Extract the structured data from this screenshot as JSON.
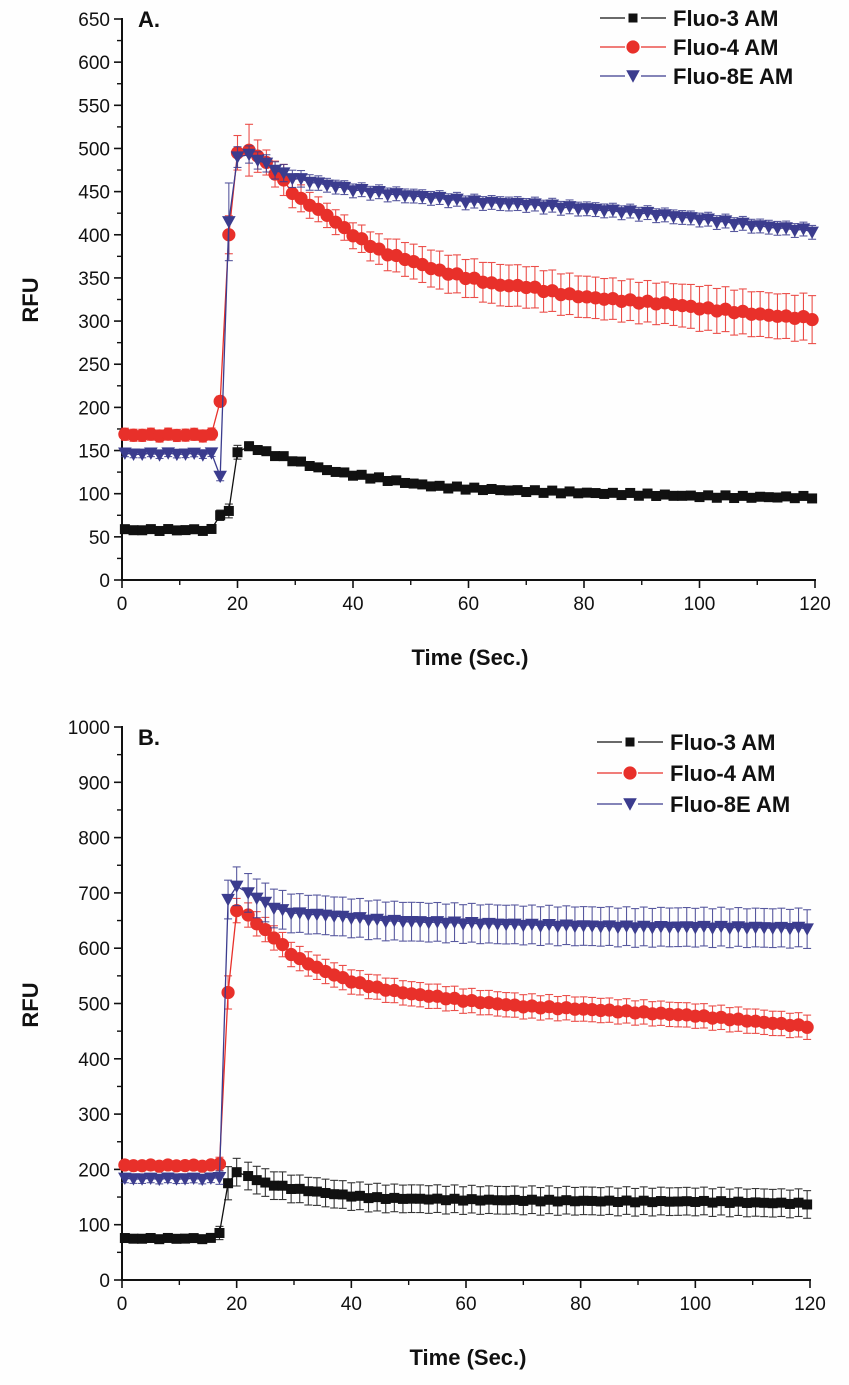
{
  "chart_data": [
    {
      "type": "line",
      "panel_label": "A.",
      "xlabel": "Time (Sec.)",
      "ylabel": "RFU",
      "xlim": [
        0,
        120
      ],
      "ylim": [
        0,
        650
      ],
      "xticks": [
        0,
        20,
        40,
        60,
        80,
        100,
        120
      ],
      "yticks": [
        0,
        50,
        100,
        150,
        200,
        250,
        300,
        350,
        400,
        450,
        500,
        550,
        600,
        650
      ],
      "grid": false,
      "legend_position": "top-right",
      "error_bars": true,
      "series": [
        {
          "name": "Fluo-3 AM",
          "color": "#111111",
          "marker": "square",
          "baseline": {
            "t_start": 0,
            "t_end": 16,
            "value": 58,
            "err": 3
          },
          "points": [
            [
              17,
              75,
              6
            ],
            [
              18.5,
              80,
              8
            ],
            [
              20,
              148,
              8
            ],
            [
              22,
              155,
              5
            ],
            [
              25,
              148,
              4
            ],
            [
              30,
              138,
              4
            ],
            [
              35,
              128,
              4
            ],
            [
              40,
              122,
              4
            ],
            [
              45,
              117,
              4
            ],
            [
              50,
              112,
              4
            ],
            [
              55,
              108,
              4
            ],
            [
              60,
              106,
              4
            ],
            [
              70,
              103,
              4
            ],
            [
              80,
              101,
              4
            ],
            [
              90,
              99,
              4
            ],
            [
              100,
              97,
              4
            ],
            [
              110,
              96,
              4
            ],
            [
              120,
              96,
              4
            ]
          ]
        },
        {
          "name": "Fluo-4 AM",
          "color": "#e8302a",
          "marker": "circle",
          "baseline": {
            "t_start": 0,
            "t_end": 16,
            "value": 168,
            "err": 7
          },
          "points": [
            [
              17,
              207,
              6
            ],
            [
              18.5,
              400,
              22
            ],
            [
              20,
              495,
              20
            ],
            [
              22,
              498,
              30
            ],
            [
              24,
              490,
              15
            ],
            [
              26,
              475,
              14
            ],
            [
              28,
              462,
              18
            ],
            [
              30,
              445,
              16
            ],
            [
              35,
              425,
              14
            ],
            [
              40,
              400,
              15
            ],
            [
              45,
              380,
              18
            ],
            [
              50,
              370,
              20
            ],
            [
              55,
              358,
              22
            ],
            [
              60,
              350,
              22
            ],
            [
              65,
              342,
              24
            ],
            [
              70,
              340,
              24
            ],
            [
              75,
              333,
              24
            ],
            [
              80,
              328,
              24
            ],
            [
              85,
              325,
              24
            ],
            [
              90,
              322,
              24
            ],
            [
              95,
              320,
              24
            ],
            [
              100,
              315,
              26
            ],
            [
              105,
              312,
              26
            ],
            [
              110,
              308,
              26
            ],
            [
              115,
              305,
              26
            ],
            [
              120,
              303,
              28
            ]
          ]
        },
        {
          "name": "Fluo-8E AM",
          "color": "#3b3c8e",
          "marker": "triangle-down",
          "baseline": {
            "t_start": 0,
            "t_end": 16,
            "value": 146,
            "err": 4
          },
          "points": [
            [
              17,
              120,
              5
            ],
            [
              18.5,
              415,
              45
            ],
            [
              20,
              490,
              12
            ],
            [
              22,
              493,
              10
            ],
            [
              24,
              485,
              10
            ],
            [
              26,
              478,
              10
            ],
            [
              28,
              470,
              10
            ],
            [
              30,
              465,
              10
            ],
            [
              35,
              458,
              8
            ],
            [
              40,
              452,
              8
            ],
            [
              45,
              448,
              8
            ],
            [
              50,
              445,
              8
            ],
            [
              55,
              442,
              8
            ],
            [
              60,
              438,
              8
            ],
            [
              70,
              435,
              8
            ],
            [
              80,
              430,
              8
            ],
            [
              90,
              425,
              8
            ],
            [
              100,
              418,
              8
            ],
            [
              110,
              410,
              8
            ],
            [
              120,
              404,
              8
            ]
          ]
        }
      ]
    },
    {
      "type": "line",
      "panel_label": "B.",
      "xlabel": "Time (Sec.)",
      "ylabel": "RFU",
      "xlim": [
        0,
        120
      ],
      "ylim": [
        0,
        1000
      ],
      "xticks": [
        0,
        20,
        40,
        60,
        80,
        100,
        120
      ],
      "yticks": [
        0,
        100,
        200,
        300,
        400,
        500,
        600,
        700,
        800,
        900,
        1000
      ],
      "grid": false,
      "legend_position": "top-right",
      "error_bars": true,
      "series": [
        {
          "name": "Fluo-3 AM",
          "color": "#111111",
          "marker": "square",
          "baseline": {
            "t_start": 0,
            "t_end": 16,
            "value": 75,
            "err": 6
          },
          "points": [
            [
              17,
              85,
              12
            ],
            [
              18.5,
              175,
              30
            ],
            [
              20,
              195,
              25
            ],
            [
              22,
              188,
              25
            ],
            [
              25,
              175,
              25
            ],
            [
              30,
              165,
              25
            ],
            [
              35,
              158,
              25
            ],
            [
              40,
              152,
              25
            ],
            [
              45,
              148,
              25
            ],
            [
              50,
              147,
              25
            ],
            [
              60,
              145,
              25
            ],
            [
              70,
              144,
              25
            ],
            [
              80,
              143,
              25
            ],
            [
              90,
              142,
              25
            ],
            [
              100,
              142,
              25
            ],
            [
              110,
              140,
              25
            ],
            [
              120,
              138,
              25
            ]
          ]
        },
        {
          "name": "Fluo-4 AM",
          "color": "#e8302a",
          "marker": "circle",
          "baseline": {
            "t_start": 0,
            "t_end": 16,
            "value": 207,
            "err": 8
          },
          "points": [
            [
              17,
              210,
              12
            ],
            [
              18.5,
              520,
              30
            ],
            [
              20,
              668,
              22
            ],
            [
              22,
              660,
              22
            ],
            [
              24,
              640,
              22
            ],
            [
              26,
              625,
              22
            ],
            [
              28,
              605,
              22
            ],
            [
              30,
              585,
              22
            ],
            [
              35,
              560,
              22
            ],
            [
              40,
              540,
              22
            ],
            [
              45,
              527,
              22
            ],
            [
              50,
              518,
              22
            ],
            [
              55,
              512,
              22
            ],
            [
              60,
              505,
              22
            ],
            [
              70,
              495,
              22
            ],
            [
              80,
              490,
              22
            ],
            [
              90,
              484,
              22
            ],
            [
              100,
              478,
              22
            ],
            [
              110,
              468,
              22
            ],
            [
              120,
              458,
              22
            ]
          ]
        },
        {
          "name": "Fluo-8E AM",
          "color": "#3b3c8e",
          "marker": "triangle-down",
          "baseline": {
            "t_start": 0,
            "t_end": 16,
            "value": 183,
            "err": 8
          },
          "points": [
            [
              17,
              185,
              12
            ],
            [
              18.5,
              688,
              35
            ],
            [
              20,
              712,
              35
            ],
            [
              22,
              700,
              35
            ],
            [
              24,
              688,
              35
            ],
            [
              26,
              675,
              35
            ],
            [
              28,
              668,
              35
            ],
            [
              30,
              663,
              35
            ],
            [
              35,
              660,
              35
            ],
            [
              40,
              655,
              35
            ],
            [
              45,
              650,
              35
            ],
            [
              50,
              648,
              35
            ],
            [
              60,
              645,
              35
            ],
            [
              70,
              642,
              35
            ],
            [
              80,
              640,
              35
            ],
            [
              90,
              638,
              35
            ],
            [
              100,
              638,
              35
            ],
            [
              110,
              637,
              35
            ],
            [
              120,
              636,
              35
            ]
          ]
        }
      ]
    }
  ]
}
